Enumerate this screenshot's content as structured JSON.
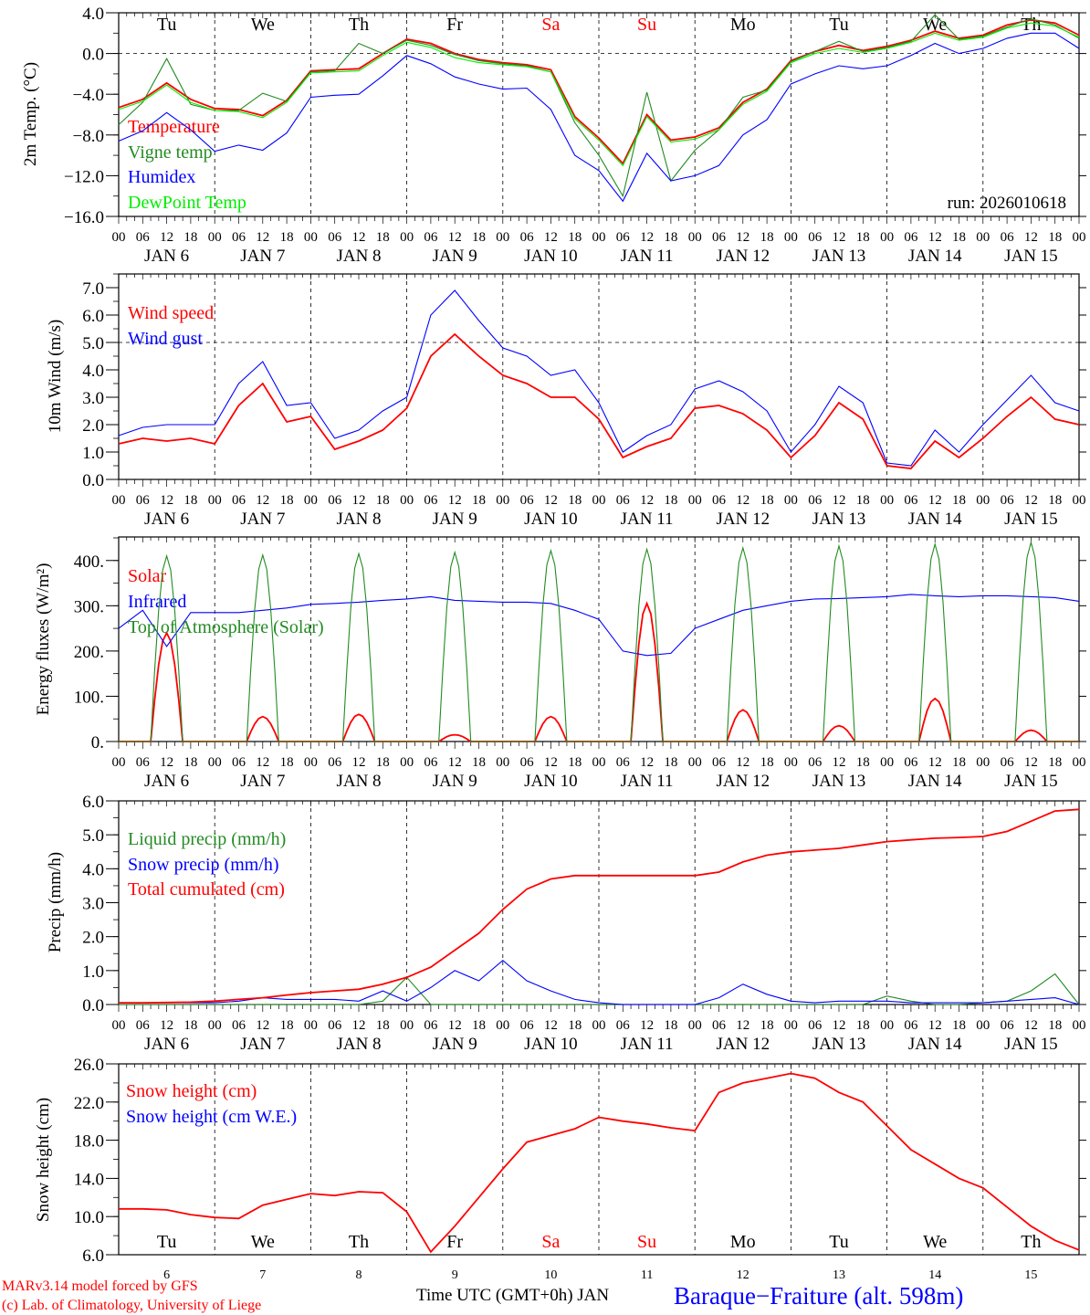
{
  "colors": {
    "red": "#ff0000",
    "green": "#228b22",
    "blue": "#0000ff",
    "lime": "#00ee00",
    "black": "#000000"
  },
  "time_axis": {
    "month": "JAN",
    "days": [
      6,
      7,
      8,
      9,
      10,
      11,
      12,
      13,
      14,
      15
    ],
    "hour_labels": [
      "00",
      "06",
      "12",
      "18"
    ],
    "weekdays": [
      "Tu",
      "We",
      "Th",
      "Fr",
      "Sa",
      "Su",
      "Mo",
      "Tu",
      "We",
      "Th"
    ],
    "weekend_flags": [
      false,
      false,
      false,
      false,
      true,
      true,
      false,
      false,
      false,
      false
    ],
    "step_hours": 6
  },
  "chart_data": [
    {
      "type": "line",
      "ylabel": "2m Temp. (°C)",
      "ylim": [
        -16,
        4
      ],
      "yticks": [
        "−16.0",
        "−12.0",
        "−8.0",
        "−4.0",
        "0.0",
        "4.0"
      ],
      "run_label": "run: 2026010618",
      "series": [
        {
          "name": "Temperature",
          "color": "#ff0000",
          "values": [
            -5.3,
            -4.5,
            -2.9,
            -4.5,
            -5.4,
            -5.5,
            -6.1,
            -4.6,
            -1.7,
            -1.6,
            -1.5,
            0.0,
            1.4,
            1.0,
            0.0,
            -0.6,
            -0.9,
            -1.1,
            -1.6,
            -6.2,
            -8.3,
            -10.8,
            -6.0,
            -8.5,
            -8.2,
            -7.3,
            -4.8,
            -3.5,
            -0.7,
            0.2,
            0.8,
            0.3,
            0.7,
            1.3,
            2.2,
            1.5,
            1.8,
            2.8,
            3.3,
            3.0,
            1.8
          ]
        },
        {
          "name": "Vigne temp",
          "color": "#228b22",
          "values": [
            -7.0,
            -4.8,
            -0.5,
            -5.0,
            -5.6,
            -5.6,
            -3.9,
            -4.7,
            -1.8,
            -1.7,
            1.0,
            0.0,
            1.3,
            0.8,
            -0.1,
            -0.7,
            -1.0,
            -1.2,
            -1.8,
            -6.8,
            -10.0,
            -14.0,
            -3.8,
            -12.5,
            -9.5,
            -7.5,
            -4.3,
            -3.6,
            -0.8,
            0.2,
            1.2,
            0.2,
            0.6,
            1.2,
            3.8,
            1.4,
            1.7,
            2.6,
            3.4,
            2.8,
            1.5
          ]
        },
        {
          "name": "Humidex",
          "color": "#0000ff",
          "values": [
            -8.6,
            -7.6,
            -5.8,
            -7.5,
            -9.6,
            -9.0,
            -9.5,
            -7.8,
            -4.3,
            -4.1,
            -4.0,
            -2.2,
            -0.2,
            -1.0,
            -2.3,
            -3.0,
            -3.5,
            -3.4,
            -5.5,
            -10.0,
            -11.5,
            -14.5,
            -9.8,
            -12.5,
            -12.0,
            -11.0,
            -8.0,
            -6.5,
            -3.0,
            -2.0,
            -1.2,
            -1.5,
            -1.2,
            -0.2,
            1.0,
            0.0,
            0.5,
            1.5,
            2.0,
            2.0,
            0.5
          ]
        },
        {
          "name": "DewPoint Temp",
          "color": "#00ee00",
          "values": [
            -5.5,
            -4.7,
            -3.1,
            -4.8,
            -5.6,
            -5.7,
            -6.3,
            -4.8,
            -1.9,
            -1.8,
            -1.7,
            -0.2,
            1.1,
            0.6,
            -0.4,
            -0.9,
            -1.1,
            -1.3,
            -1.8,
            -6.4,
            -8.5,
            -11.0,
            -6.2,
            -8.7,
            -8.4,
            -7.5,
            -5.0,
            -3.7,
            -0.9,
            0.0,
            0.5,
            0.1,
            0.5,
            1.1,
            2.0,
            1.3,
            1.6,
            2.5,
            3.0,
            2.7,
            1.6
          ]
        }
      ]
    },
    {
      "type": "line",
      "ylabel": "10m Wind (m/s)",
      "ylim": [
        0,
        7.5
      ],
      "yticks": [
        "0.0",
        "1.0",
        "2.0",
        "3.0",
        "4.0",
        "5.0",
        "6.0",
        "7.0"
      ],
      "series": [
        {
          "name": "Wind speed",
          "color": "#ff0000",
          "values": [
            1.3,
            1.5,
            1.4,
            1.5,
            1.3,
            2.7,
            3.5,
            2.1,
            2.3,
            1.1,
            1.4,
            1.8,
            2.6,
            4.5,
            5.3,
            4.5,
            3.8,
            3.5,
            3.0,
            3.0,
            2.2,
            0.8,
            1.2,
            1.5,
            2.6,
            2.7,
            2.4,
            1.8,
            0.8,
            1.6,
            2.8,
            2.2,
            0.5,
            0.4,
            1.4,
            0.8,
            1.5,
            2.3,
            3.0,
            2.2,
            2.0
          ]
        },
        {
          "name": "Wind gust",
          "color": "#0000ff",
          "values": [
            1.6,
            1.9,
            2.0,
            2.0,
            2.0,
            3.5,
            4.3,
            2.7,
            2.8,
            1.5,
            1.8,
            2.5,
            3.0,
            6.0,
            6.9,
            5.8,
            4.8,
            4.5,
            3.8,
            4.0,
            2.8,
            1.0,
            1.6,
            2.0,
            3.3,
            3.6,
            3.2,
            2.5,
            1.0,
            2.0,
            3.4,
            2.8,
            0.6,
            0.5,
            1.8,
            1.0,
            2.0,
            2.9,
            3.8,
            2.8,
            2.5
          ]
        }
      ]
    },
    {
      "type": "line",
      "ylabel": "Energy fluxes (W/m²)",
      "ylim": [
        0,
        452
      ],
      "yticks": [
        "0.",
        "100.",
        "200.",
        "300.",
        "400."
      ],
      "series": [
        {
          "name": "Solar",
          "color": "#ff0000",
          "daily_peaks": [
            240,
            55,
            60,
            15,
            55,
            305,
            70,
            35,
            95,
            25
          ]
        },
        {
          "name": "Infrared",
          "color": "#0000ff",
          "values": [
            250,
            290,
            210,
            285,
            285,
            285,
            290,
            295,
            303,
            305,
            308,
            312,
            315,
            320,
            312,
            310,
            308,
            308,
            305,
            290,
            270,
            200,
            190,
            195,
            250,
            270,
            290,
            300,
            310,
            315,
            316,
            318,
            320,
            325,
            322,
            320,
            322,
            322,
            320,
            318,
            310
          ]
        },
        {
          "name": "Top of Atmosphere (Solar)",
          "color": "#228b22",
          "daily_peaks": [
            410,
            412,
            415,
            418,
            422,
            425,
            428,
            432,
            436,
            440
          ]
        }
      ]
    },
    {
      "type": "line",
      "ylabel": "Precip (mm/h)",
      "ylim": [
        0,
        6
      ],
      "yticks": [
        "0.0",
        "1.0",
        "2.0",
        "3.0",
        "4.0",
        "5.0",
        "6.0"
      ],
      "series": [
        {
          "name": "Liquid precip (mm/h)",
          "color": "#228b22",
          "values": [
            0,
            0,
            0,
            0,
            0,
            0,
            0,
            0,
            0,
            0,
            0,
            0.1,
            0.8,
            0,
            0,
            0,
            0,
            0,
            0,
            0,
            0,
            0,
            0,
            0,
            0,
            0,
            0,
            0,
            0,
            0,
            0,
            0,
            0.25,
            0.1,
            0,
            0,
            0.05,
            0.1,
            0.4,
            0.9,
            0
          ]
        },
        {
          "name": "Snow precip (mm/h)",
          "color": "#0000ff",
          "values": [
            0.05,
            0.05,
            0.05,
            0.05,
            0.05,
            0.1,
            0.2,
            0.15,
            0.15,
            0.15,
            0.1,
            0.4,
            0.1,
            0.5,
            1.0,
            0.7,
            1.3,
            0.7,
            0.4,
            0.15,
            0.05,
            0,
            0,
            0,
            0,
            0.2,
            0.6,
            0.3,
            0.1,
            0.05,
            0.1,
            0.1,
            0.1,
            0.05,
            0.05,
            0.05,
            0.05,
            0.1,
            0.15,
            0.2,
            0
          ]
        },
        {
          "name": "Total cumulated (cm)",
          "color": "#ff0000",
          "values": [
            0.05,
            0.05,
            0.06,
            0.07,
            0.1,
            0.15,
            0.2,
            0.28,
            0.35,
            0.4,
            0.45,
            0.6,
            0.8,
            1.1,
            1.6,
            2.1,
            2.8,
            3.4,
            3.7,
            3.8,
            3.8,
            3.8,
            3.8,
            3.8,
            3.8,
            3.9,
            4.2,
            4.4,
            4.5,
            4.55,
            4.6,
            4.7,
            4.8,
            4.85,
            4.9,
            4.92,
            4.95,
            5.1,
            5.4,
            5.7,
            5.75
          ]
        }
      ]
    },
    {
      "type": "line",
      "ylabel": "Snow height (cm)",
      "ylim": [
        6,
        26
      ],
      "yticks": [
        "6.0",
        "10.0",
        "14.0",
        "18.0",
        "22.0",
        "26.0"
      ],
      "series": [
        {
          "name": "Snow height (cm)",
          "color": "#ff0000",
          "values": [
            10.8,
            10.8,
            10.7,
            10.2,
            9.9,
            9.8,
            11.2,
            11.8,
            12.4,
            12.2,
            12.6,
            12.5,
            10.5,
            6.3,
            9.0,
            12.0,
            15.0,
            17.8,
            18.5,
            19.2,
            20.4,
            20.0,
            19.7,
            19.3,
            19.0,
            23.0,
            24.0,
            24.5,
            25.0,
            24.5,
            23.0,
            22.0,
            19.5,
            17.0,
            15.5,
            14.0,
            13.0,
            11.0,
            9.0,
            7.5,
            6.5
          ]
        },
        {
          "name": "Snow height (cm W.E.)",
          "color": "#0000ff",
          "values": []
        }
      ]
    }
  ],
  "footer": {
    "credit_1": "MARv3.14 model forced by GFS",
    "credit_2": "(c) Lab. of Climatology, University of Liege",
    "xlabel": "Time UTC (GMT+0h) JAN",
    "station": "Baraque−Fraiture (alt. 598m)"
  }
}
